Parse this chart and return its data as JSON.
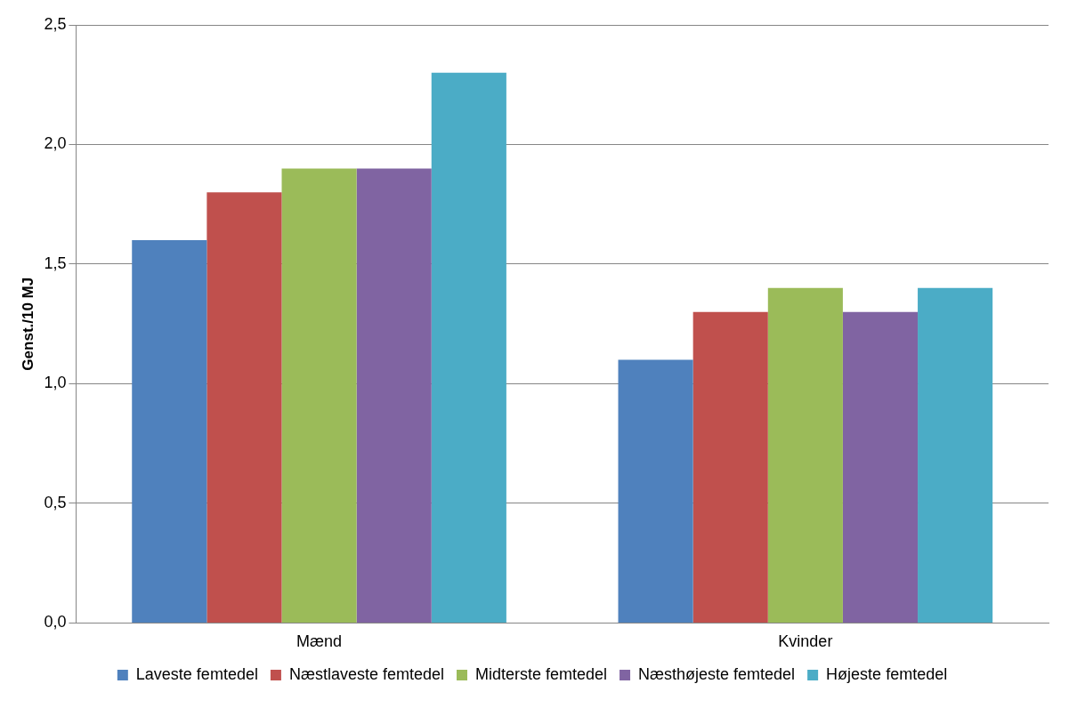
{
  "chart_data": {
    "type": "bar",
    "ylabel": "Genst./10 MJ",
    "categories": [
      "Mænd",
      "Kvinder"
    ],
    "series": [
      {
        "name": "Laveste femtedel",
        "color": "#4f81bd",
        "values": [
          1.6,
          1.1
        ]
      },
      {
        "name": "Næstlaveste femtedel",
        "color": "#c0504d",
        "values": [
          1.8,
          1.3
        ]
      },
      {
        "name": "Midterste femtedel",
        "color": "#9bbb59",
        "values": [
          1.9,
          1.4
        ]
      },
      {
        "name": "Næsthøjeste femtedel",
        "color": "#8064a2",
        "values": [
          1.9,
          1.3
        ]
      },
      {
        "name": "Højeste femtedel",
        "color": "#4bacc6",
        "values": [
          2.3,
          1.4
        ]
      }
    ],
    "ylim": [
      0,
      2.5
    ],
    "yticks": [
      {
        "value": 0,
        "label": "0,0"
      },
      {
        "value": 0.5,
        "label": "0,5"
      },
      {
        "value": 1,
        "label": "1,0"
      },
      {
        "value": 1.5,
        "label": "1,5"
      },
      {
        "value": 2,
        "label": "2,0"
      },
      {
        "value": 2.5,
        "label": "2,5"
      }
    ],
    "grid": "y",
    "legend": "bottom"
  }
}
